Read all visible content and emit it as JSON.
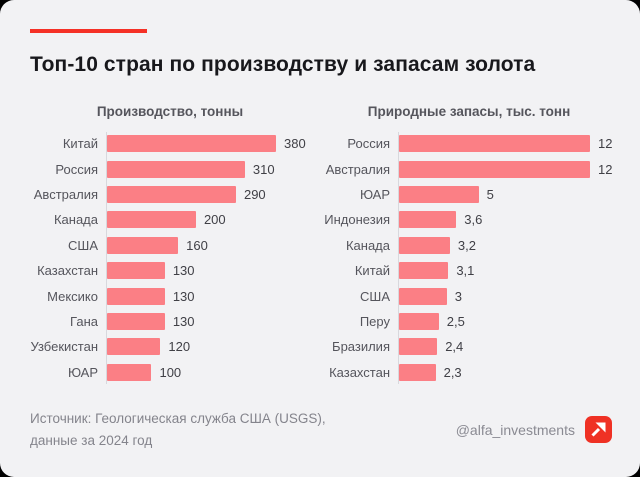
{
  "header": {
    "title": "Топ-10 стран по производству и запасам золота"
  },
  "chart_data": [
    {
      "type": "bar",
      "orientation": "horizontal",
      "title": "Производство, тонны",
      "categories": [
        "Китай",
        "Россия",
        "Австралия",
        "Канада",
        "США",
        "Казахстан",
        "Мексико",
        "Гана",
        "Узбекистан",
        "ЮАР"
      ],
      "values": [
        380,
        310,
        290,
        200,
        160,
        130,
        130,
        130,
        120,
        100
      ],
      "value_labels": [
        "380",
        "310",
        "290",
        "200",
        "160",
        "130",
        "130",
        "130",
        "120",
        "100"
      ],
      "xlim": [
        0,
        380
      ],
      "grid": false,
      "bar_color": "#FB7F85"
    },
    {
      "type": "bar",
      "orientation": "horizontal",
      "title": "Природные запасы, тыс. тонн",
      "categories": [
        "Россия",
        "Австралия",
        "ЮАР",
        "Индонезия",
        "Канада",
        "Китай",
        "США",
        "Перу",
        "Бразилия",
        "Казахстан"
      ],
      "values": [
        12,
        12,
        5,
        3.6,
        3.2,
        3.1,
        3,
        2.5,
        2.4,
        2.3
      ],
      "value_labels": [
        "12",
        "12",
        "5",
        "3,6",
        "3,2",
        "3,1",
        "3",
        "2,5",
        "2,4",
        "2,3"
      ],
      "xlim": [
        0,
        12
      ],
      "grid": false,
      "bar_color": "#FB7F85"
    }
  ],
  "footer": {
    "source_line1": "Источник: Геологическая служба США (USGS),",
    "source_line2": "данные за 2024 год",
    "handle": "@alfa_investments",
    "logo_icon": "arrow-up-right-icon"
  },
  "colors": {
    "accent_red": "#F53126",
    "bar": "#FB7F85",
    "logo_red": "#EF3124",
    "card_background": "#F2F2F4",
    "axis": "#D8D8DD"
  }
}
